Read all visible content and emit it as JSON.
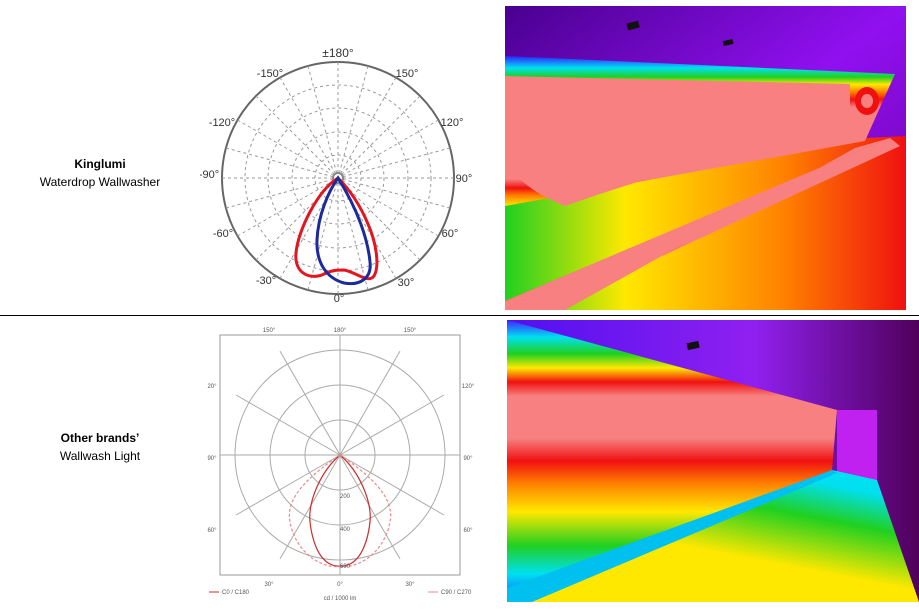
{
  "rows": [
    {
      "brand": "Kinglumi",
      "product": "Waterdrop Wallwasher",
      "polar_labels": {
        "top": "±180°",
        "upper_left": "-150°",
        "upper_right": "150°",
        "mid_upper_left": "-120°",
        "mid_upper_right": "120°",
        "left": "-90°",
        "right": "90°",
        "mid_lower_left": "-60°",
        "mid_lower_right": "60°",
        "lower_left": "-30°",
        "lower_right": "30°",
        "bottom": "0°"
      },
      "curve_colors": {
        "c0": "#e3151e",
        "c90": "#1c2a9c"
      }
    },
    {
      "brand": "Other brands’",
      "product": "Wallwash Light",
      "polar_labels": {
        "top": "180°",
        "top_left": "150°",
        "top_right": "150°",
        "left_upper": "20°",
        "right_upper": "120°",
        "left_mid": "90°",
        "right_mid": "90°",
        "left_lower": "60°",
        "right_lower": "60°",
        "bottom_left": "30°",
        "bottom_center": "0°",
        "bottom_right": "30°",
        "ring_values": [
          "200",
          "400",
          "600"
        ]
      },
      "unit_label": "cd / 1000 lm",
      "legend": [
        {
          "label": "C0 / C180",
          "color": "#cc2a2a"
        },
        {
          "label": "C90 / C270",
          "color": "#e88a8a"
        }
      ]
    }
  ],
  "heatmap_colors": {
    "peak": "#f88080",
    "red": "#f01010",
    "orange": "#ff8000",
    "yellow": "#ffe800",
    "green": "#20d020",
    "cyan": "#00e8e8",
    "blue": "#1010ff",
    "violet": "#8000f0",
    "dark": "#50005a"
  }
}
